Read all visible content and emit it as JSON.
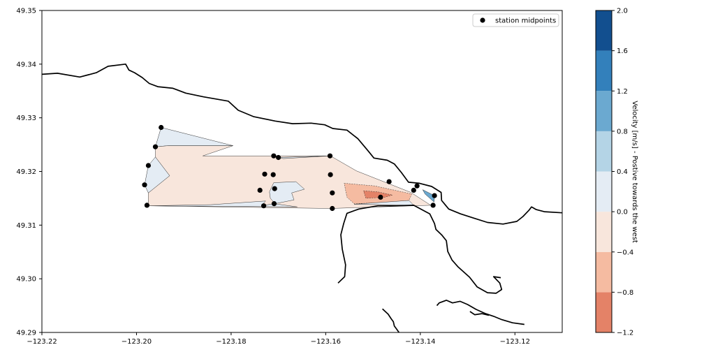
{
  "chart_data": {
    "type": "contour_map",
    "title": "",
    "xlabel": "",
    "ylabel": "",
    "xlim": [
      -123.22,
      -123.11
    ],
    "ylim": [
      49.29,
      49.35
    ],
    "x_ticks": [
      "−123.22",
      "−123.20",
      "−123.18",
      "−123.16",
      "−123.14",
      "−123.12"
    ],
    "y_ticks": [
      "49.29",
      "49.30",
      "49.31",
      "49.32",
      "49.33",
      "49.34",
      "49.35"
    ],
    "legend": {
      "placement": "top-right",
      "entries": [
        {
          "label": "station midpoints",
          "marker": "black-circle"
        }
      ]
    },
    "colorbar": {
      "label": "Velocity [m/s] - Postive towards the west",
      "levels": [
        -1.2,
        -0.8,
        -0.4,
        0.0,
        0.4,
        0.8,
        1.2,
        1.6,
        2.0
      ],
      "tick_labels": [
        "−1.2",
        "−0.8",
        "−0.4",
        "0.0",
        "0.4",
        "0.8",
        "1.2",
        "1.6",
        "2.0"
      ],
      "colors": [
        "#e48267",
        "#f5bba1",
        "#f8e6dc",
        "#e4ecf4",
        "#b4d4e6",
        "#6ba9d0",
        "#3380bb",
        "#124f8f"
      ]
    },
    "series": [
      {
        "name": "station midpoints",
        "points": [
          [
            -123.1948,
            49.3282
          ],
          [
            -123.196,
            49.3246
          ],
          [
            -123.1975,
            49.3211
          ],
          [
            -123.1983,
            49.3175
          ],
          [
            -123.1978,
            49.3137
          ],
          [
            -123.171,
            49.3229
          ],
          [
            -123.17,
            49.3226
          ],
          [
            -123.1591,
            49.3229
          ],
          [
            -123.1729,
            49.3195
          ],
          [
            -123.1711,
            49.3194
          ],
          [
            -123.159,
            49.3194
          ],
          [
            -123.1739,
            49.3165
          ],
          [
            -123.1708,
            49.3168
          ],
          [
            -123.1586,
            49.316
          ],
          [
            -123.1731,
            49.3136
          ],
          [
            -123.1709,
            49.314
          ],
          [
            -123.1586,
            49.3131
          ],
          [
            -123.1484,
            49.3152
          ],
          [
            -123.1466,
            49.3181
          ],
          [
            -123.1414,
            49.3165
          ],
          [
            -123.1407,
            49.3173
          ],
          [
            -123.137,
            49.3155
          ],
          [
            -123.1373,
            49.3137
          ]
        ]
      }
    ],
    "contour_regions": [
      {
        "level_range": [
          0.0,
          0.4
        ],
        "points": [
          [
            -123.1948,
            49.3282
          ],
          [
            -123.1796,
            49.3248
          ],
          [
            -123.1933,
            49.3248
          ],
          [
            -123.196,
            49.3246
          ]
        ]
      },
      {
        "level_range": [
          -0.4,
          0.0
        ],
        "points": [
          [
            -123.196,
            49.3246
          ],
          [
            -123.1933,
            49.3248
          ],
          [
            -123.1796,
            49.3248
          ],
          [
            -123.186,
            49.3229
          ],
          [
            -123.159,
            49.3229
          ],
          [
            -123.1535,
            49.3201
          ],
          [
            -123.142,
            49.3161
          ],
          [
            -123.1378,
            49.3137
          ],
          [
            -123.159,
            49.3131
          ],
          [
            -123.1975,
            49.3136
          ],
          [
            -123.1975,
            49.316
          ],
          [
            -123.193,
            49.3192
          ],
          [
            -123.196,
            49.3227
          ]
        ]
      },
      {
        "level_range": [
          0.0,
          0.4
        ],
        "points": [
          [
            -123.196,
            49.3227
          ],
          [
            -123.193,
            49.3192
          ],
          [
            -123.1975,
            49.316
          ],
          [
            -123.1983,
            49.3175
          ],
          [
            -123.1975,
            49.3211
          ]
        ]
      },
      {
        "level_range": [
          0.0,
          0.4
        ],
        "points": [
          [
            -123.171,
            49.3229
          ],
          [
            -123.17,
            49.3226
          ],
          [
            -123.1591,
            49.3229
          ],
          [
            -123.165,
            49.3226
          ],
          [
            -123.169,
            49.3224
          ]
        ]
      },
      {
        "level_range": [
          0.0,
          0.4
        ],
        "points": [
          [
            -123.171,
            49.3179
          ],
          [
            -123.1663,
            49.3181
          ],
          [
            -123.1645,
            49.3167
          ],
          [
            -123.1672,
            49.316
          ],
          [
            -123.1667,
            49.3147
          ],
          [
            -123.1707,
            49.314
          ],
          [
            -123.1717,
            49.315
          ],
          [
            -123.1719,
            49.3162
          ]
        ]
      },
      {
        "level_range": [
          0.0,
          0.4
        ],
        "points": [
          [
            -123.1975,
            49.3136
          ],
          [
            -123.1843,
            49.3138
          ],
          [
            -123.1727,
            49.3145
          ],
          [
            -123.1736,
            49.3136
          ],
          [
            -123.171,
            49.314
          ],
          [
            -123.166,
            49.3134
          ]
        ]
      },
      {
        "level_range": [
          -0.8,
          -0.4
        ],
        "points": [
          [
            -123.1561,
            49.3178
          ],
          [
            -123.1496,
            49.3173
          ],
          [
            -123.1418,
            49.3158
          ],
          [
            -123.1424,
            49.3146
          ],
          [
            -123.1474,
            49.3142
          ],
          [
            -123.154,
            49.314
          ],
          [
            -123.1555,
            49.3152
          ]
        ]
      },
      {
        "level_range": [
          -1.2,
          -0.8
        ],
        "points": [
          [
            -123.152,
            49.3164
          ],
          [
            -123.149,
            49.3162
          ],
          [
            -123.1459,
            49.3156
          ],
          [
            -123.1475,
            49.3152
          ],
          [
            -123.1515,
            49.315
          ]
        ]
      },
      {
        "level_range": [
          0.4,
          2.0
        ],
        "points": [
          [
            -123.1395,
            49.3166
          ],
          [
            -123.137,
            49.3155
          ],
          [
            -123.1371,
            49.3143
          ],
          [
            -123.139,
            49.3158
          ]
        ]
      },
      {
        "level_range": [
          0.0,
          0.4
        ],
        "points": [
          [
            -123.154,
            49.3139
          ],
          [
            -123.1424,
            49.3146
          ],
          [
            -123.1414,
            49.3137
          ],
          [
            -123.148,
            49.3138
          ]
        ]
      }
    ],
    "coastline": [
      [
        [
          -123.22,
          49.3381
        ],
        [
          -123.2167,
          49.3383
        ],
        [
          -123.212,
          49.3376
        ],
        [
          -123.2085,
          49.3384
        ],
        [
          -123.206,
          49.3396
        ],
        [
          -123.2023,
          49.34
        ],
        [
          -123.2016,
          49.3389
        ],
        [
          -123.2004,
          49.3384
        ],
        [
          -123.1988,
          49.3375
        ],
        [
          -123.1973,
          49.3364
        ],
        [
          -123.1955,
          49.3358
        ],
        [
          -123.1923,
          49.3355
        ],
        [
          -123.1896,
          49.3346
        ],
        [
          -123.1858,
          49.3339
        ],
        [
          -123.1806,
          49.3331
        ],
        [
          -123.1785,
          49.3314
        ],
        [
          -123.1752,
          49.3302
        ],
        [
          -123.1707,
          49.3294
        ],
        [
          -123.167,
          49.3289
        ],
        [
          -123.1631,
          49.329
        ],
        [
          -123.1602,
          49.3287
        ],
        [
          -123.1585,
          49.328
        ],
        [
          -123.1555,
          49.3277
        ],
        [
          -123.1532,
          49.3261
        ],
        [
          -123.151,
          49.3238
        ],
        [
          -123.1498,
          49.3225
        ],
        [
          -123.147,
          49.3221
        ],
        [
          -123.1455,
          49.3214
        ],
        [
          -123.144,
          49.3198
        ],
        [
          -123.1425,
          49.318
        ],
        [
          -123.1402,
          49.3178
        ],
        [
          -123.1376,
          49.3172
        ],
        [
          -123.1356,
          49.3161
        ],
        [
          -123.1355,
          49.3146
        ],
        [
          -123.134,
          49.313
        ],
        [
          -123.1315,
          49.3121
        ],
        [
          -123.1287,
          49.3113
        ],
        [
          -123.1258,
          49.3105
        ],
        [
          -123.1225,
          49.3102
        ],
        [
          -123.1196,
          49.3107
        ],
        [
          -123.1183,
          49.3116
        ],
        [
          -123.117,
          49.3128
        ],
        [
          -123.1165,
          49.3134
        ],
        [
          -123.1155,
          49.3129
        ],
        [
          -123.1138,
          49.3125
        ],
        [
          -123.11,
          49.3123
        ]
      ],
      [
        [
          -123.1574,
          49.2992
        ],
        [
          -123.156,
          49.3004
        ],
        [
          -123.1558,
          49.3026
        ],
        [
          -123.1565,
          49.3055
        ],
        [
          -123.1568,
          49.3082
        ],
        [
          -123.1562,
          49.3103
        ],
        [
          -123.1555,
          49.3122
        ],
        [
          -123.153,
          49.313
        ],
        [
          -123.149,
          49.3136
        ],
        [
          -123.145,
          49.3136
        ],
        [
          -123.1414,
          49.3137
        ],
        [
          -123.138,
          49.3121
        ],
        [
          -123.137,
          49.3103
        ],
        [
          -123.1367,
          49.3092
        ],
        [
          -123.1355,
          49.3082
        ],
        [
          -123.1345,
          49.3071
        ],
        [
          -123.1342,
          49.3051
        ],
        [
          -123.1333,
          49.3035
        ],
        [
          -123.132,
          49.3022
        ],
        [
          -123.1296,
          49.3003
        ],
        [
          -123.128,
          49.2985
        ],
        [
          -123.1258,
          49.2974
        ],
        [
          -123.124,
          49.2973
        ],
        [
          -123.1228,
          49.298
        ],
        [
          -123.1232,
          49.2992
        ],
        [
          -123.1245,
          49.3004
        ],
        [
          -123.123,
          49.3002
        ]
      ],
      [
        [
          -123.148,
          49.2944
        ],
        [
          -123.1468,
          49.2934
        ],
        [
          -123.1462,
          49.2926
        ],
        [
          -123.1457,
          49.292
        ],
        [
          -123.1455,
          49.2912
        ],
        [
          -123.145,
          49.2906
        ],
        [
          -123.1445,
          49.29
        ]
      ],
      [
        [
          -123.1365,
          49.295
        ],
        [
          -123.136,
          49.2955
        ],
        [
          -123.1345,
          49.296
        ],
        [
          -123.1332,
          49.2955
        ],
        [
          -123.1316,
          49.2958
        ],
        [
          -123.13,
          49.2952
        ],
        [
          -123.1282,
          49.2943
        ],
        [
          -123.1262,
          49.2935
        ],
        [
          -123.1245,
          49.293
        ],
        [
          -123.1228,
          49.2924
        ],
        [
          -123.1205,
          49.2918
        ],
        [
          -123.118,
          49.2915
        ]
      ],
      [
        [
          -123.1295,
          49.2939
        ],
        [
          -123.1285,
          49.2933
        ],
        [
          -123.127,
          49.2935
        ],
        [
          -123.1255,
          49.2932
        ]
      ]
    ]
  }
}
